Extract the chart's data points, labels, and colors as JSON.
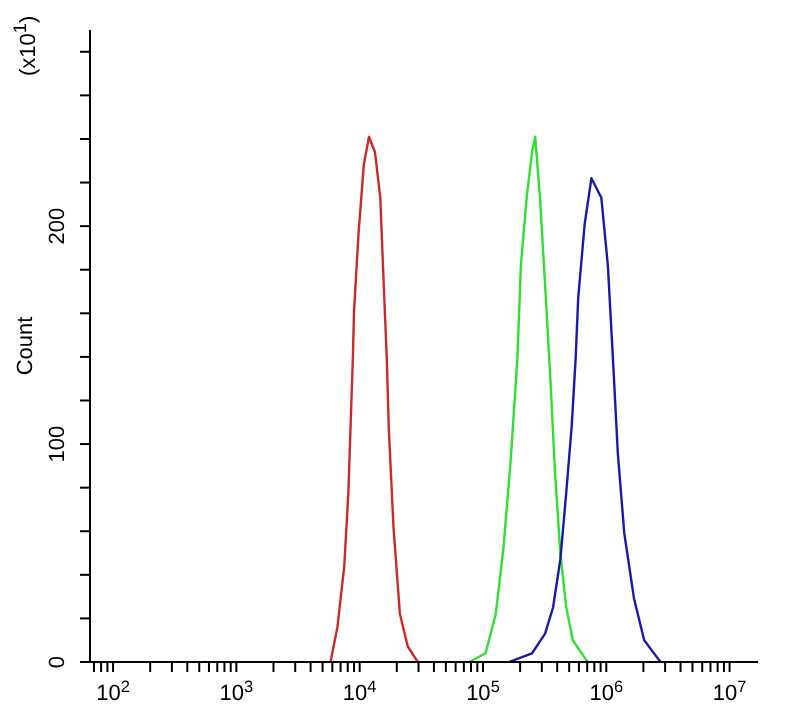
{
  "chart_data": {
    "type": "line",
    "ylabel": "Count",
    "annotations": [
      "(x10$^{1}$)"
    ],
    "log": "x",
    "grid": false,
    "legend": false,
    "marker": "none",
    "line_style": "solid",
    "xlim": [
      65,
      17000000
    ],
    "xticks": [
      {
        "value": 70,
        "label": null
      },
      {
        "value": 80,
        "label": null
      },
      {
        "value": 90,
        "label": null
      },
      {
        "value": 100,
        "label": "10$^{2}$"
      },
      {
        "value": 200,
        "label": null
      },
      {
        "value": 300,
        "label": null
      },
      {
        "value": 400,
        "label": null
      },
      {
        "value": 500,
        "label": null
      },
      {
        "value": 600,
        "label": null
      },
      {
        "value": 700,
        "label": null
      },
      {
        "value": 800,
        "label": null
      },
      {
        "value": 900,
        "label": null
      },
      {
        "value": 1000,
        "label": "10$^{3}$"
      },
      {
        "value": 2000,
        "label": null
      },
      {
        "value": 3000,
        "label": null
      },
      {
        "value": 4000,
        "label": null
      },
      {
        "value": 5000,
        "label": null
      },
      {
        "value": 6000,
        "label": null
      },
      {
        "value": 7000,
        "label": null
      },
      {
        "value": 8000,
        "label": null
      },
      {
        "value": 9000,
        "label": null
      },
      {
        "value": 10000,
        "label": "10$^{4}$"
      },
      {
        "value": 20000,
        "label": null
      },
      {
        "value": 30000,
        "label": null
      },
      {
        "value": 40000,
        "label": null
      },
      {
        "value": 50000,
        "label": null
      },
      {
        "value": 60000,
        "label": null
      },
      {
        "value": 70000,
        "label": null
      },
      {
        "value": 80000,
        "label": null
      },
      {
        "value": 90000,
        "label": null
      },
      {
        "value": 100000,
        "label": "10$^{5}$"
      },
      {
        "value": 200000,
        "label": null
      },
      {
        "value": 300000,
        "label": null
      },
      {
        "value": 400000,
        "label": null
      },
      {
        "value": 500000,
        "label": null
      },
      {
        "value": 600000,
        "label": null
      },
      {
        "value": 700000,
        "label": null
      },
      {
        "value": 800000,
        "label": null
      },
      {
        "value": 900000,
        "label": null
      },
      {
        "value": 1000000,
        "label": "10$^{6}$"
      },
      {
        "value": 2000000,
        "label": null
      },
      {
        "value": 3000000,
        "label": null
      },
      {
        "value": 4000000,
        "label": null
      },
      {
        "value": 5000000,
        "label": null
      },
      {
        "value": 6000000,
        "label": null
      },
      {
        "value": 7000000,
        "label": null
      },
      {
        "value": 8000000,
        "label": null
      },
      {
        "value": 9000000,
        "label": null
      },
      {
        "value": 10000000,
        "label": "10$^{7}$"
      }
    ],
    "ylim": [
      0,
      290
    ],
    "yticks": [
      0,
      {
        "value": 20,
        "label": null
      },
      {
        "value": 40,
        "label": null
      },
      {
        "value": 60,
        "label": null
      },
      {
        "value": 80,
        "label": null
      },
      100,
      {
        "value": 120,
        "label": null
      },
      {
        "value": 140,
        "label": null
      },
      {
        "value": 160,
        "label": null
      },
      {
        "value": 180,
        "label": null
      },
      200,
      {
        "value": 220,
        "label": null
      },
      {
        "value": 240,
        "label": null
      },
      {
        "value": 260,
        "label": null
      },
      {
        "value": 280,
        "label": null
      }
    ],
    "series": [
      {
        "color": "#cc2a2a",
        "x": [
          5800,
          6600,
          7500,
          8100,
          8800,
          9000,
          9800,
          10800,
          11900,
          13300,
          14700,
          15600,
          16600,
          17200,
          18800,
          21200,
          24600,
          29600
        ],
        "values": [
          0,
          16,
          44,
          78,
          139,
          161,
          197,
          228,
          241,
          234,
          213,
          176,
          139,
          108,
          62,
          22,
          7,
          0
        ]
      },
      {
        "color": "#33dd33",
        "x": [
          77400,
          105000,
          127000,
          147000,
          168000,
          190000,
          203000,
          226000,
          250000,
          265000,
          290000,
          319000,
          352000,
          384000,
          424000,
          474000,
          535000,
          668000,
          708000
        ],
        "values": [
          0,
          4,
          22,
          53,
          93,
          139,
          182,
          213,
          234,
          241,
          213,
          173,
          130,
          87,
          50,
          25,
          10,
          2,
          0
        ]
      },
      {
        "color": "#1a1aaa",
        "x": [
          162000,
          250000,
          319000,
          370000,
          424000,
          474000,
          524000,
          564000,
          592000,
          668000,
          758000,
          912000,
          1030000,
          1140000,
          1240000,
          1400000,
          1680000,
          2030000,
          2590000,
          2760000
        ],
        "values": [
          0,
          4,
          13,
          25,
          47,
          78,
          108,
          139,
          167,
          201,
          222,
          213,
          182,
          136,
          96,
          59,
          29,
          10,
          2,
          0
        ]
      }
    ]
  }
}
